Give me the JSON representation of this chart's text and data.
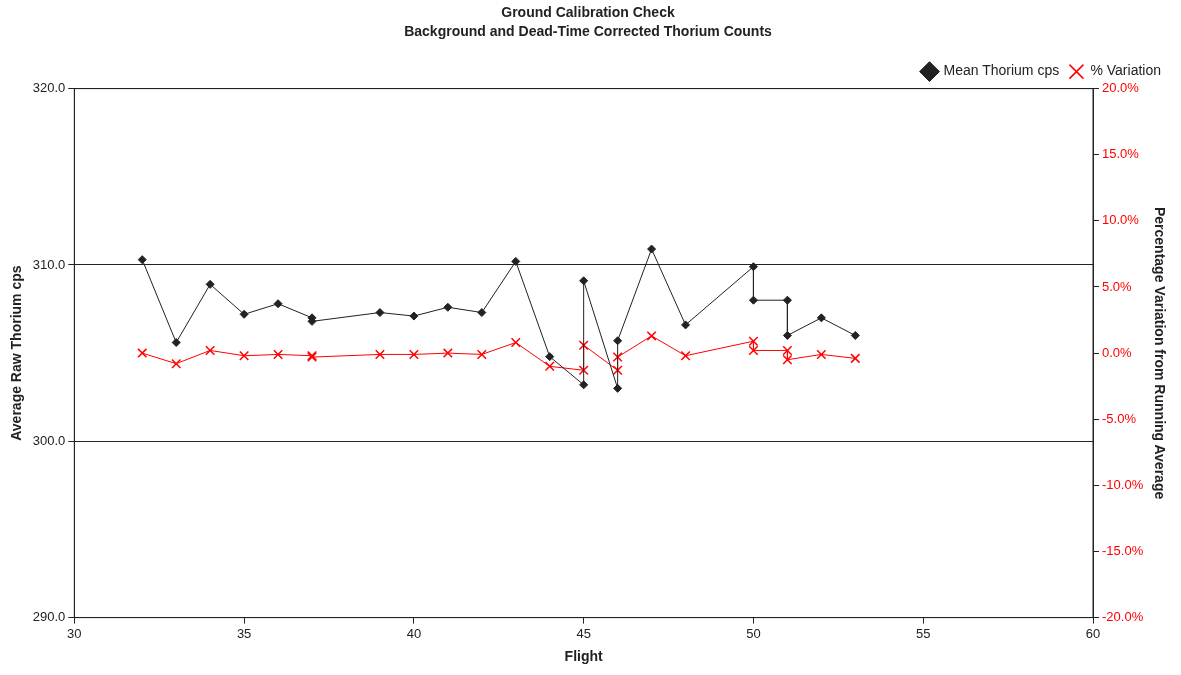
{
  "chart_data": {
    "type": "line",
    "title": "Ground Calibration Check",
    "subtitle": "Background and Dead-Time Corrected Thorium Counts",
    "xlabel": "Flight",
    "ylabel": "Average Raw Thorium cps",
    "y2label": "Percentage Variation from Running Average",
    "x": [
      32,
      33,
      34,
      35,
      36,
      37,
      37,
      39,
      40,
      41,
      42,
      43,
      44,
      45,
      45,
      46,
      46,
      47,
      48,
      50,
      50,
      51,
      51,
      52,
      53
    ],
    "series": [
      {
        "name": "Mean Thorium cps",
        "color": "#222222",
        "marker": "diamond",
        "values": [
          310.3,
          305.6,
          308.9,
          307.2,
          307.8,
          307.0,
          306.8,
          307.3,
          307.1,
          307.6,
          307.3,
          310.2,
          304.8,
          303.2,
          309.1,
          303.0,
          305.7,
          310.9,
          306.6,
          309.9,
          308.0,
          308.0,
          306.0,
          307.0,
          306.0
        ]
      },
      {
        "name": "% Variation",
        "color": "#ff0000",
        "marker": "cross",
        "axis": "y2",
        "values": [
          0.0,
          -0.8,
          0.2,
          -0.2,
          -0.1,
          -0.2,
          -0.3,
          -0.1,
          -0.1,
          0.0,
          -0.1,
          0.8,
          -1.0,
          -1.3,
          0.6,
          -1.3,
          -0.3,
          1.3,
          -0.2,
          0.9,
          0.2,
          0.2,
          -0.5,
          -0.1,
          -0.4
        ]
      }
    ],
    "xlim": [
      30,
      60
    ],
    "xticks": [
      30,
      35,
      40,
      45,
      50,
      55,
      60
    ],
    "ylim": [
      290,
      320
    ],
    "yticks": [
      {
        "value": 290,
        "label": "290.0"
      },
      {
        "value": 300,
        "label": "300.0"
      },
      {
        "value": 310,
        "label": "310.0"
      },
      {
        "value": 320,
        "label": "320.0"
      }
    ],
    "y2lim": [
      -20,
      20
    ],
    "y2ticks": [
      {
        "value": -20,
        "label": "-20.0%"
      },
      {
        "value": -15,
        "label": "-15.0%"
      },
      {
        "value": -10,
        "label": "-10.0%"
      },
      {
        "value": -5,
        "label": "-5.0%"
      },
      {
        "value": 0,
        "label": "0.0%"
      },
      {
        "value": 5,
        "label": "5.0%"
      },
      {
        "value": 10,
        "label": "10.0%"
      },
      {
        "value": 15,
        "label": "15.0%"
      },
      {
        "value": 20,
        "label": "20.0%"
      }
    ],
    "grid": "y",
    "legend": "top right",
    "line_style": "solid"
  }
}
